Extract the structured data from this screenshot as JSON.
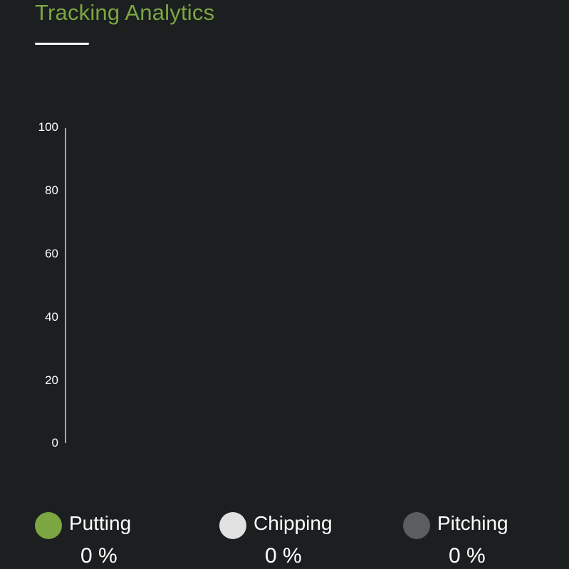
{
  "header": {
    "title": "Tracking Analytics"
  },
  "chart_data": {
    "type": "bar",
    "categories": [
      "Putting",
      "Chipping",
      "Pitching"
    ],
    "values": [
      0,
      0,
      0
    ],
    "y_ticks": [
      "100",
      "80",
      "60",
      "40",
      "20",
      "0"
    ],
    "ylim": [
      0,
      100
    ],
    "grid": false
  },
  "legend": {
    "items": [
      {
        "label": "Putting",
        "value": "0 %",
        "color": "#7ca642"
      },
      {
        "label": "Chipping",
        "value": "0 %",
        "color": "#e1e1e1"
      },
      {
        "label": "Pitching",
        "value": "0 %",
        "color": "#5c5d5f"
      }
    ]
  },
  "colors": {
    "background": "#1b1f20",
    "accent": "#7ca642"
  }
}
